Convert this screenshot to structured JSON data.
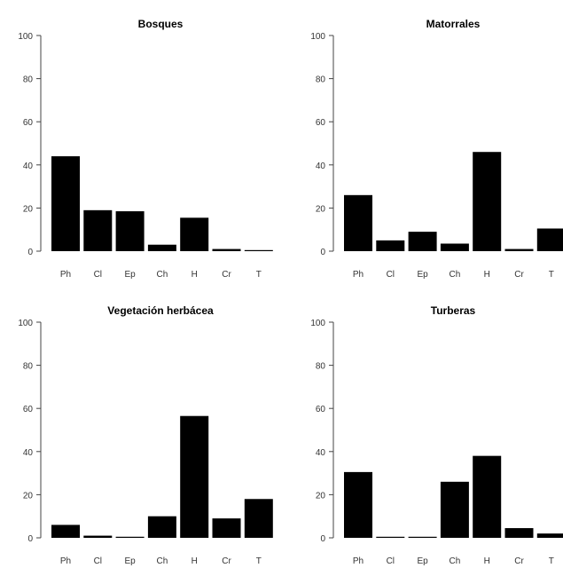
{
  "chart_data": [
    {
      "type": "bar",
      "title": "Bosques",
      "categories": [
        "Ph",
        "Cl",
        "Ep",
        "Ch",
        "H",
        "Cr",
        "T"
      ],
      "values": [
        44,
        19,
        18.5,
        3,
        15.5,
        1,
        0
      ],
      "ylim": [
        0,
        100
      ],
      "yticks": [
        "0",
        "20",
        "40",
        "60",
        "80",
        "100"
      ],
      "xlabel": "",
      "ylabel": "",
      "grid": false,
      "legend": "none"
    },
    {
      "type": "bar",
      "title": "Matorrales",
      "categories": [
        "Ph",
        "Cl",
        "Ep",
        "Ch",
        "H",
        "Cr",
        "T"
      ],
      "values": [
        26,
        5,
        9,
        3.5,
        46,
        1,
        10.5
      ],
      "ylim": [
        0,
        100
      ],
      "yticks": [
        "0",
        "20",
        "40",
        "60",
        "80",
        "100"
      ],
      "xlabel": "",
      "ylabel": "",
      "grid": false,
      "legend": "none"
    },
    {
      "type": "bar",
      "title": "Vegetación herbácea",
      "categories": [
        "Ph",
        "Cl",
        "Ep",
        "Ch",
        "H",
        "Cr",
        "T"
      ],
      "values": [
        6,
        1,
        0.5,
        10,
        56.5,
        9,
        18
      ],
      "ylim": [
        0,
        100
      ],
      "yticks": [
        "0",
        "20",
        "40",
        "60",
        "80",
        "100"
      ],
      "xlabel": "",
      "ylabel": "",
      "grid": false,
      "legend": "none"
    },
    {
      "type": "bar",
      "title": "Turberas",
      "categories": [
        "Ph",
        "Cl",
        "Ep",
        "Ch",
        "H",
        "Cr",
        "T"
      ],
      "values": [
        30.5,
        0,
        0,
        26,
        38,
        4.5,
        2
      ],
      "ylim": [
        0,
        100
      ],
      "yticks": [
        "0",
        "20",
        "40",
        "60",
        "80",
        "100"
      ],
      "xlabel": "",
      "ylabel": "",
      "grid": false,
      "legend": "none"
    }
  ],
  "colors": {
    "bar": "#000000",
    "axis": "#444444",
    "text": "#333333"
  }
}
